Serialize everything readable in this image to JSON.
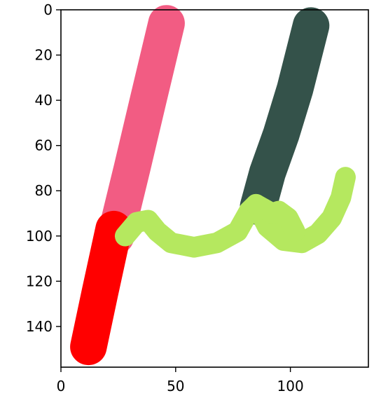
{
  "chart_data": {
    "type": "image",
    "title": "",
    "xlabel": "",
    "ylabel": "",
    "xlim": [
      0,
      134
    ],
    "ylim": [
      158,
      0
    ],
    "grid": false,
    "legend": "none",
    "x_ticks": [
      0,
      50,
      100
    ],
    "y_ticks": [
      0,
      20,
      40,
      60,
      80,
      100,
      120,
      140
    ],
    "strokes": [
      {
        "color": "#f25c83",
        "width": 16,
        "points": [
          [
            46,
            6
          ],
          [
            38,
            40
          ],
          [
            31,
            70
          ],
          [
            25,
            95
          ],
          [
            24,
            100
          ]
        ]
      },
      {
        "color": "#ff0000",
        "width": 16,
        "points": [
          [
            23,
            97
          ],
          [
            17,
            125
          ],
          [
            12,
            149
          ]
        ]
      },
      {
        "color": "#34524a",
        "width": 16,
        "points": [
          [
            109,
            7
          ],
          [
            102,
            35
          ],
          [
            96,
            55
          ],
          [
            90,
            72
          ],
          [
            86,
            87
          ]
        ]
      },
      {
        "color": "#b5e85f",
        "width": 9,
        "points": [
          [
            28,
            100
          ],
          [
            33,
            94
          ],
          [
            38,
            93
          ],
          [
            42,
            98
          ],
          [
            48,
            103
          ],
          [
            58,
            105
          ],
          [
            68,
            103
          ],
          [
            77,
            98
          ],
          [
            82,
            89
          ],
          [
            85,
            86
          ],
          [
            90,
            96
          ],
          [
            97,
            102
          ],
          [
            105,
            103
          ],
          [
            112,
            99
          ],
          [
            118,
            92
          ],
          [
            122,
            83
          ],
          [
            124,
            74
          ]
        ]
      },
      {
        "color": "#b5e85f",
        "width": 9,
        "points": [
          [
            85,
            86
          ],
          [
            92,
            90
          ],
          [
            95,
            89
          ],
          [
            99,
            92
          ],
          [
            102,
            98
          ]
        ]
      }
    ]
  }
}
